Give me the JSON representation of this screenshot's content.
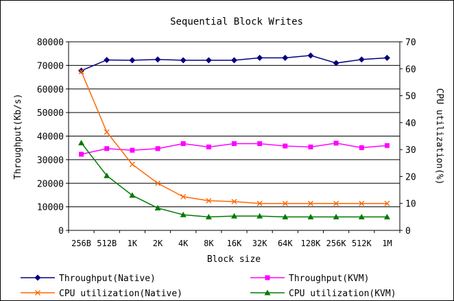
{
  "chart_data": {
    "type": "line",
    "title": "Sequential Block Writes",
    "xlabel": "Block size",
    "ylabel": "Throughput(Kb/s)",
    "y2label": "CPU utilization(%)",
    "categories": [
      "256B",
      "512B",
      "1K",
      "2K",
      "4K",
      "8K",
      "16K",
      "32K",
      "64K",
      "128K",
      "256K",
      "512K",
      "1M"
    ],
    "ylim": [
      0,
      80000
    ],
    "yticks": [
      "0",
      "10000",
      "20000",
      "30000",
      "40000",
      "50000",
      "60000",
      "70000",
      "80000"
    ],
    "y2lim": [
      0,
      70
    ],
    "y2ticks": [
      "0",
      "10",
      "20",
      "30",
      "40",
      "50",
      "60",
      "70"
    ],
    "grid": true,
    "legend_placement": "bottom",
    "series": [
      {
        "name": "Throughput(Native)",
        "axis": "left",
        "color": "#000080",
        "marker": "diamond",
        "values": [
          67800,
          72300,
          72200,
          72500,
          72200,
          72200,
          72200,
          73200,
          73200,
          74200,
          71000,
          72500,
          73200
        ]
      },
      {
        "name": "Throughput(KVM)",
        "axis": "left",
        "color": "#ff00ff",
        "marker": "square",
        "values": [
          32300,
          34700,
          34000,
          34700,
          36800,
          35400,
          36800,
          36800,
          35800,
          35400,
          37000,
          35100,
          36000
        ]
      },
      {
        "name": "CPU utilization(Native)",
        "axis": "right",
        "color": "#ff6600",
        "marker": "x",
        "values": [
          59,
          36.5,
          24.5,
          17.5,
          12.5,
          11,
          10.7,
          10,
          10,
          10,
          10,
          10,
          10
        ]
      },
      {
        "name": "CPU utilization(KVM)",
        "axis": "right",
        "color": "#007a00",
        "marker": "triangle",
        "values": [
          32.5,
          20.3,
          13,
          8.3,
          5.8,
          5,
          5.3,
          5.3,
          5,
          5,
          5,
          5,
          5
        ]
      }
    ]
  }
}
